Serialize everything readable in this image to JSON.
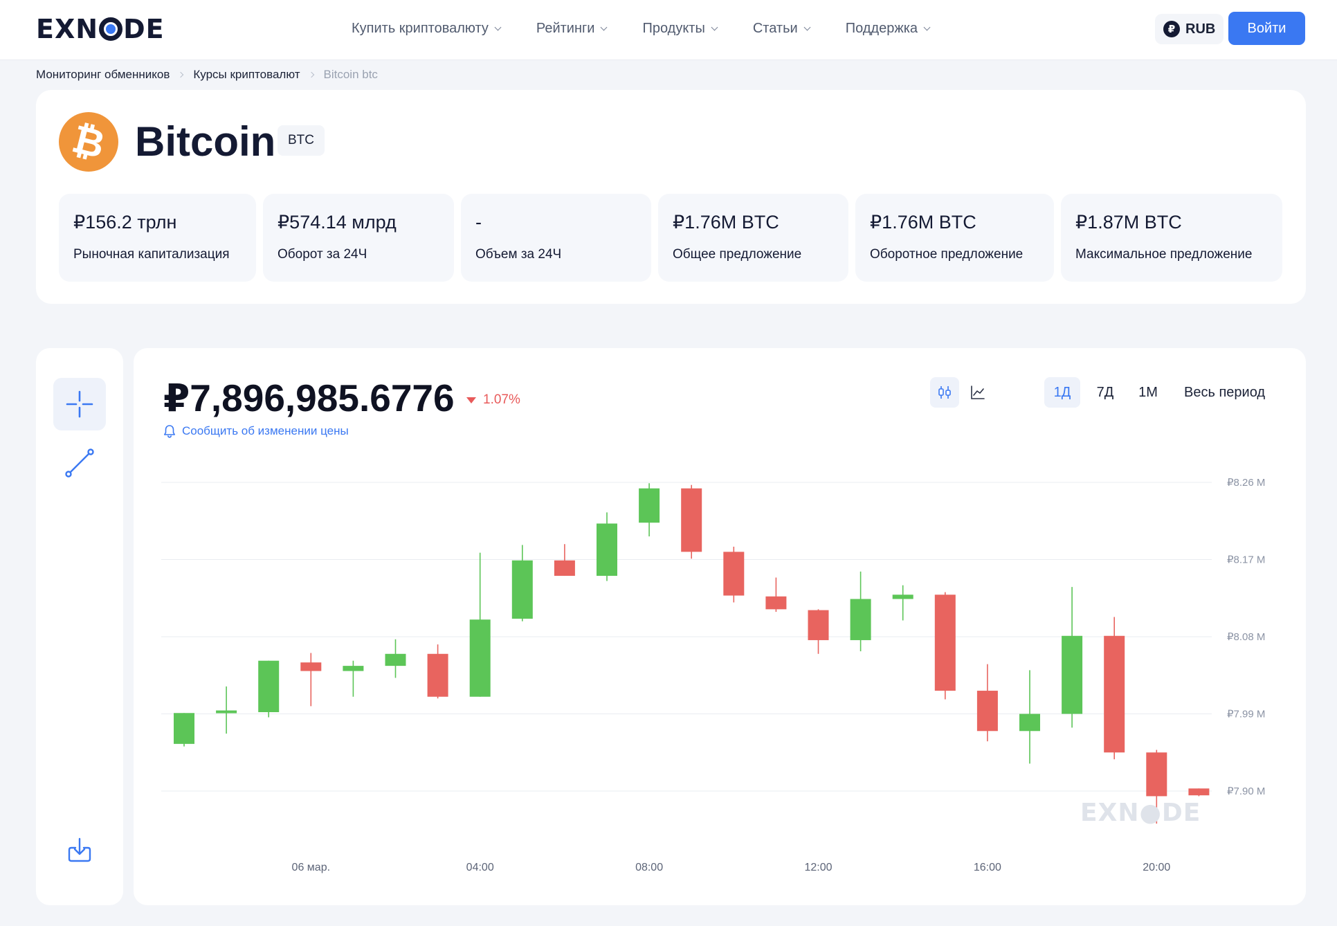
{
  "header": {
    "logo": {
      "left": "EXN",
      "right": "DE"
    },
    "nav": [
      {
        "label": "Купить криптовалюту"
      },
      {
        "label": "Рейтинги"
      },
      {
        "label": "Продукты"
      },
      {
        "label": "Статьи"
      },
      {
        "label": "Поддержка"
      }
    ],
    "currency": {
      "symbol": "₽",
      "code": "RUB"
    },
    "login_label": "Войти"
  },
  "breadcrumb": [
    "Мониторинг обменников",
    "Курсы криптовалют",
    "Bitcoin btc"
  ],
  "coin": {
    "name": "Bitcoin",
    "ticker": "BTC",
    "logo_color": "#f0953a",
    "stats": [
      {
        "value": "₽156.2 трлн",
        "label": "Рыночная капитализация"
      },
      {
        "value": "₽574.14 млрд",
        "label": "Оборот за 24Ч"
      },
      {
        "value": "-",
        "label": "Объем за 24Ч"
      },
      {
        "value": "₽1.76M BTC",
        "label": "Общее предложение"
      },
      {
        "value": "₽1.76M BTC",
        "label": "Оборотное предложение"
      },
      {
        "value": "₽1.87M BTC",
        "label": "Максимальное предложение"
      }
    ]
  },
  "tools": [
    "crosshair-icon",
    "trend-line-icon",
    "download-icon"
  ],
  "price_panel": {
    "price": "₽7,896,985.6776",
    "change": "1.07%",
    "change_direction": "down",
    "alert_label": "Сообщить об изменении цены",
    "chart_types": [
      "candlestick-icon",
      "line-chart-icon"
    ],
    "active_chart_type": 0,
    "periods": [
      "1Д",
      "7Д",
      "1М",
      "Весь период"
    ],
    "active_period": 0,
    "watermark": {
      "left": "EXN",
      "right": "DE"
    }
  },
  "colors": {
    "accent": "#3a78f2",
    "up": "#5cc557",
    "down": "#e8645f"
  },
  "chart_data": {
    "type": "candlestick",
    "y_ticks": [
      "₽8.26 M",
      "₽8.17 M",
      "₽8.08 M",
      "₽7.99 M",
      "₽7.90 M"
    ],
    "y_tick_values": [
      8.26,
      8.17,
      8.08,
      7.99,
      7.9
    ],
    "ylim": [
      7.86,
      8.3
    ],
    "x_ticks": [
      {
        "label": "06 мар.",
        "index": 3
      },
      {
        "label": "04:00",
        "index": 7
      },
      {
        "label": "08:00",
        "index": 11
      },
      {
        "label": "12:00",
        "index": 15
      },
      {
        "label": "16:00",
        "index": 19
      },
      {
        "label": "20:00",
        "index": 23
      }
    ],
    "candles": [
      {
        "o": 7.955,
        "h": 7.989,
        "l": 7.952,
        "c": 7.991
      },
      {
        "o": 7.991,
        "h": 8.022,
        "l": 7.967,
        "c": 7.994
      },
      {
        "o": 7.992,
        "h": 8.051,
        "l": 7.986,
        "c": 8.052
      },
      {
        "o": 8.05,
        "h": 8.061,
        "l": 7.999,
        "c": 8.04
      },
      {
        "o": 8.04,
        "h": 8.052,
        "l": 8.01,
        "c": 8.046
      },
      {
        "o": 8.046,
        "h": 8.077,
        "l": 8.032,
        "c": 8.06
      },
      {
        "o": 8.06,
        "h": 8.071,
        "l": 8.008,
        "c": 8.01
      },
      {
        "o": 8.01,
        "h": 8.178,
        "l": 8.01,
        "c": 8.1
      },
      {
        "o": 8.101,
        "h": 8.187,
        "l": 8.098,
        "c": 8.169
      },
      {
        "o": 8.169,
        "h": 8.188,
        "l": 8.151,
        "c": 8.151
      },
      {
        "o": 8.151,
        "h": 8.225,
        "l": 8.145,
        "c": 8.212
      },
      {
        "o": 8.213,
        "h": 8.259,
        "l": 8.197,
        "c": 8.253
      },
      {
        "o": 8.253,
        "h": 8.257,
        "l": 8.171,
        "c": 8.179
      },
      {
        "o": 8.179,
        "h": 8.185,
        "l": 8.12,
        "c": 8.128
      },
      {
        "o": 8.127,
        "h": 8.149,
        "l": 8.109,
        "c": 8.112
      },
      {
        "o": 8.111,
        "h": 8.112,
        "l": 8.06,
        "c": 8.076
      },
      {
        "o": 8.076,
        "h": 8.156,
        "l": 8.063,
        "c": 8.124
      },
      {
        "o": 8.124,
        "h": 8.14,
        "l": 8.099,
        "c": 8.129
      },
      {
        "o": 8.129,
        "h": 8.132,
        "l": 8.007,
        "c": 8.017
      },
      {
        "o": 8.017,
        "h": 8.048,
        "l": 7.958,
        "c": 7.97
      },
      {
        "o": 7.97,
        "h": 8.041,
        "l": 7.932,
        "c": 7.99
      },
      {
        "o": 7.99,
        "h": 8.138,
        "l": 7.974,
        "c": 8.081
      },
      {
        "o": 8.081,
        "h": 8.103,
        "l": 7.937,
        "c": 7.945
      },
      {
        "o": 7.945,
        "h": 7.948,
        "l": 7.862,
        "c": 7.894
      },
      {
        "o": 7.903,
        "h": 7.903,
        "l": 7.894,
        "c": 7.895
      }
    ]
  }
}
